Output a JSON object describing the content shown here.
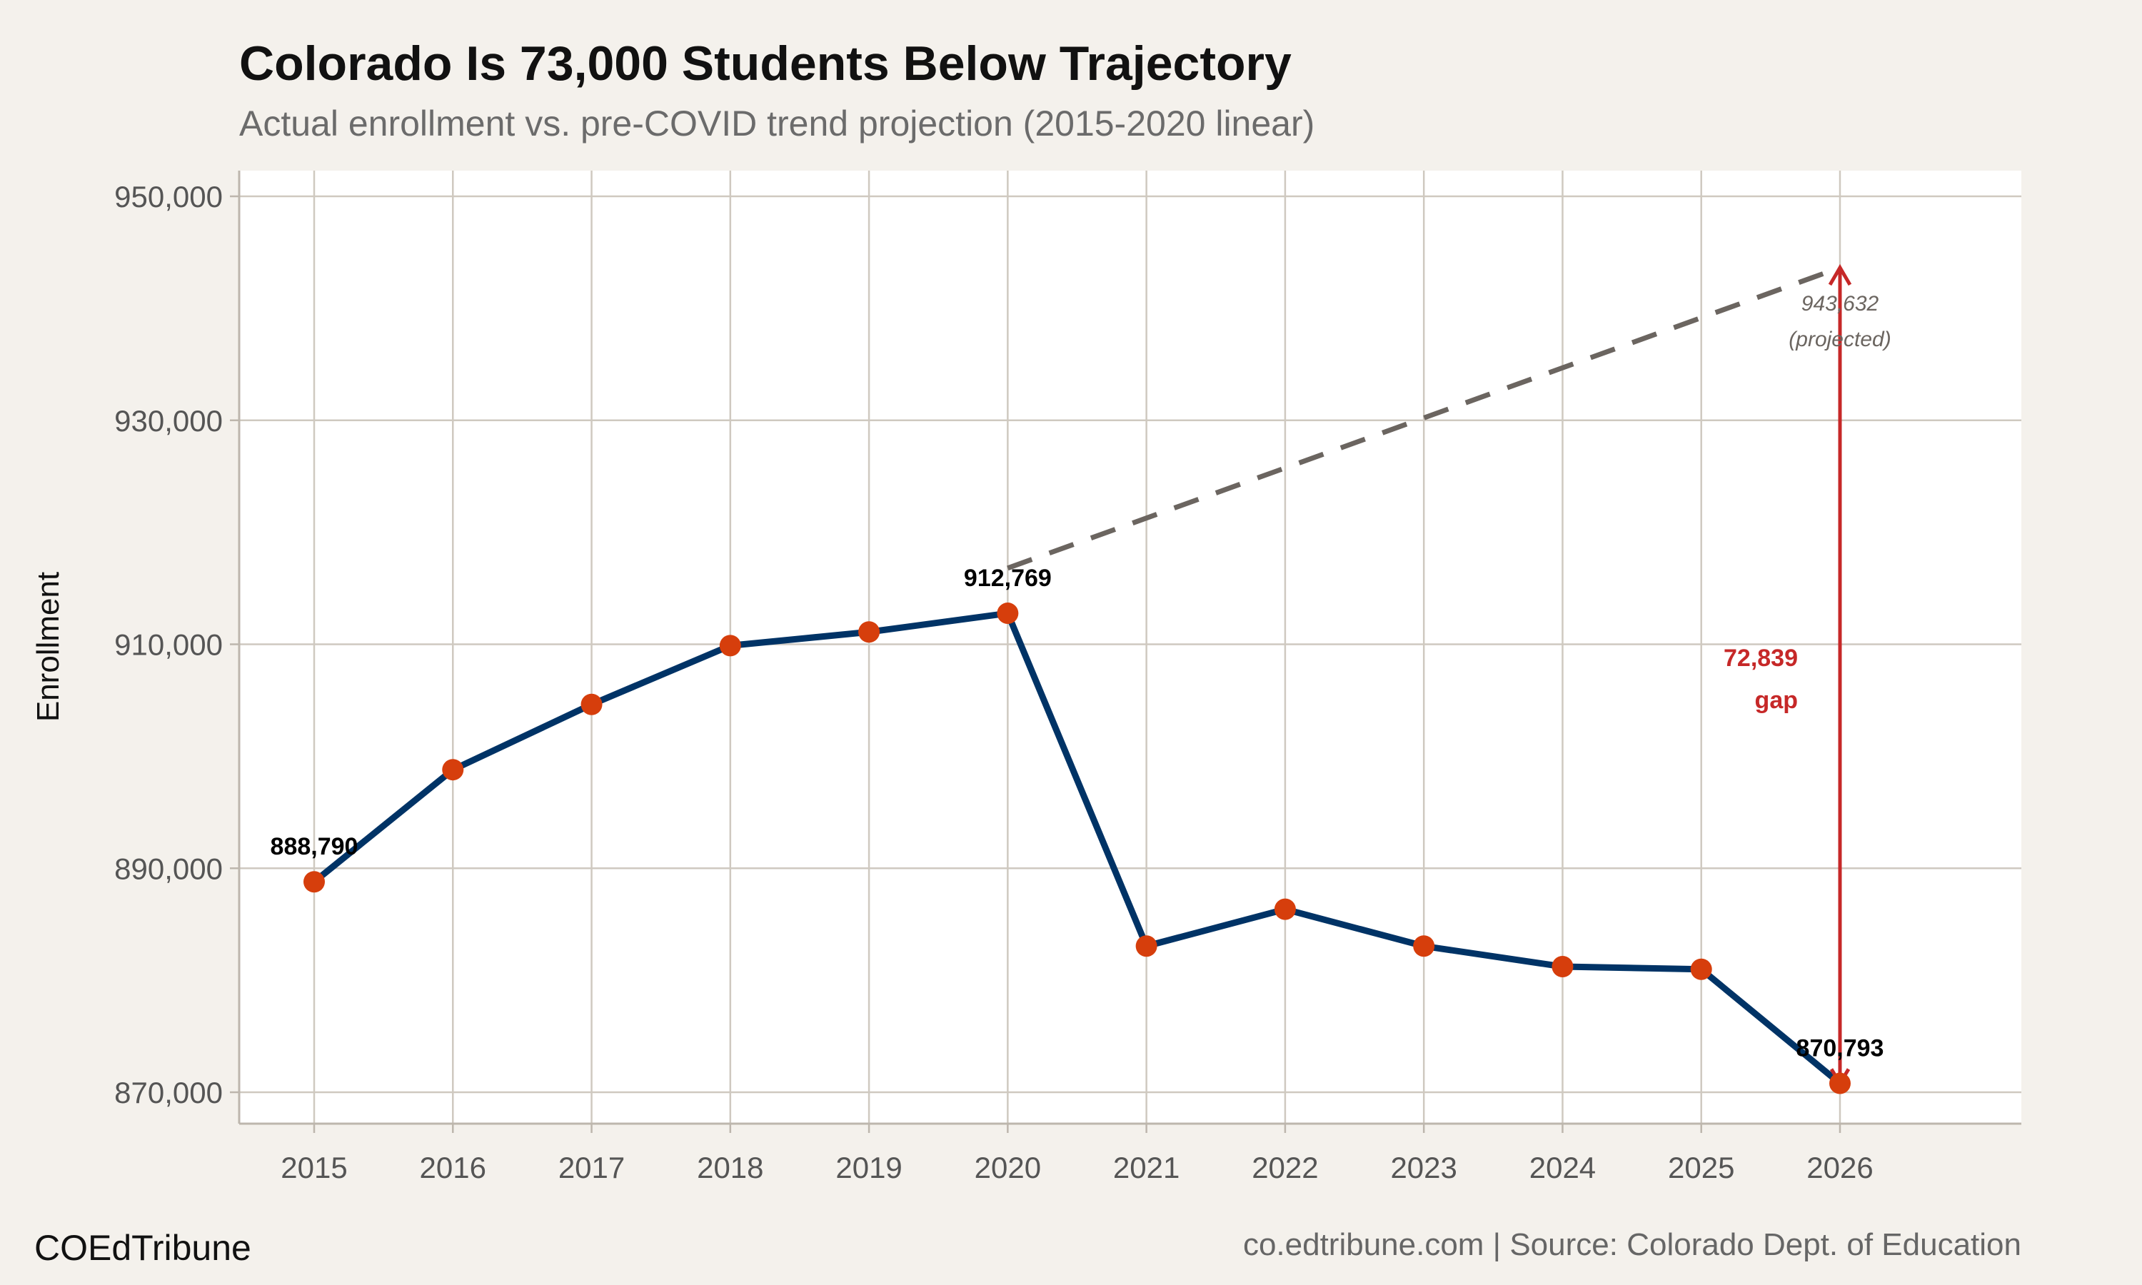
{
  "chart_data": {
    "type": "line",
    "title": "Colorado Is 73,000 Students Below Trajectory",
    "subtitle": "Actual enrollment vs. pre-COVID trend projection (2015-2020 linear)",
    "xlabel": "",
    "ylabel": "Enrollment",
    "ylim": [
      866000,
      952000
    ],
    "yticks": [
      870000,
      890000,
      910000,
      930000,
      950000
    ],
    "ytick_labels": [
      "870,000",
      "890,000",
      "910,000",
      "930,000",
      "950,000"
    ],
    "x": [
      2015,
      2016,
      2017,
      2018,
      2019,
      2020,
      2021,
      2022,
      2023,
      2024,
      2025,
      2026
    ],
    "x_labels": [
      "2015",
      "2016",
      "2017",
      "2018",
      "2019",
      "2020",
      "2021",
      "2022",
      "2023",
      "2024",
      "2025",
      "2026"
    ],
    "grid": true,
    "series": [
      {
        "values": [
          888790,
          898800,
          904630,
          909880,
          911100,
          912769,
          883050,
          886340,
          883050,
          881220,
          880980,
          870793
        ],
        "line_color": "#003366",
        "marker_color": "#d63e0c"
      },
      {
        "style": "dashed",
        "x": [
          2020,
          2026
        ],
        "values": [
          916800,
          943632
        ],
        "line_color": "#6b6560"
      }
    ],
    "annotations": {
      "start_label": "888,790",
      "peak_label": "912,769",
      "end_label": "870,793",
      "projected_value": "943,632",
      "projected_note": "(projected)",
      "gap_value": "72,839",
      "gap_word": "gap",
      "gap_color": "#c62828"
    }
  },
  "footer": {
    "brand": "COEdTribune",
    "source": "co.edtribune.com | Source: Colorado Dept. of Education"
  },
  "colors": {
    "background": "#f4f1ec",
    "plot_background": "#ffffff",
    "grid": "#cfc9c0"
  }
}
